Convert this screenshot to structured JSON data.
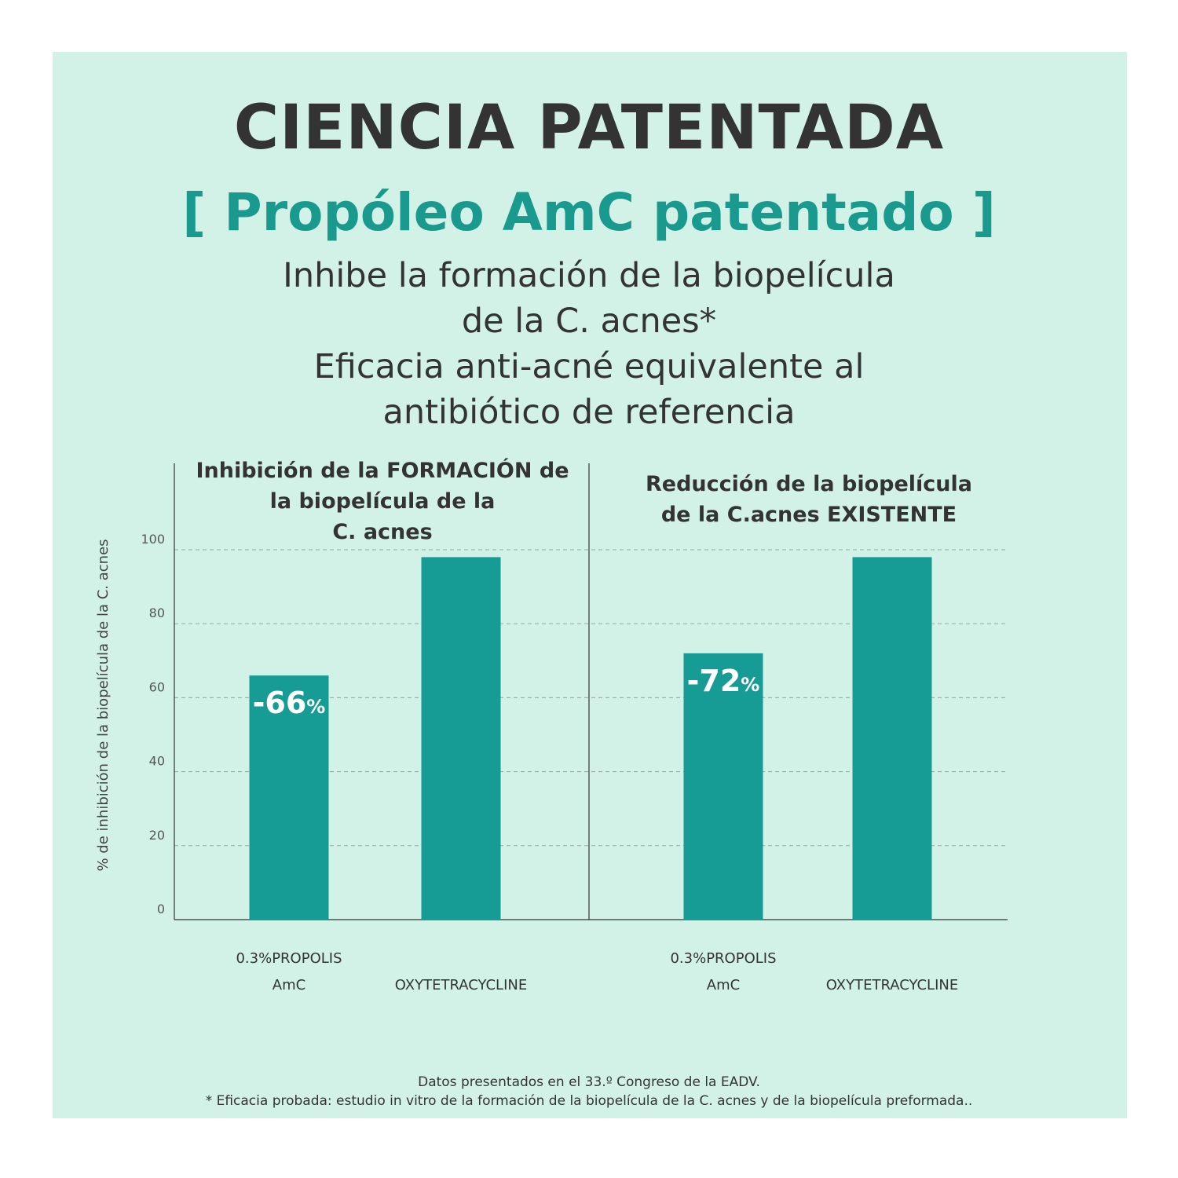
{
  "header": {
    "title": "CIENCIA PATENTADA",
    "subtitle": "[ Propóleo AmC patentado ]",
    "claims": [
      "Inhibe la formación de la biopelícula",
      "de la C. acnes*",
      "Eficacia anti-acné equivalente al",
      "antibiótico de referencia"
    ]
  },
  "colors": {
    "panel": "#d2f2e8",
    "bar": "#169c94",
    "title": "#333333",
    "subtitle": "#1a9a8e"
  },
  "chart_data": {
    "type": "bar",
    "ylabel": "% de inhibición de la biopelícula de la C. acnes",
    "ylim": [
      0,
      100
    ],
    "yticks": [
      "0",
      "20",
      "40",
      "60",
      "80",
      "100"
    ],
    "grid": true,
    "groups": [
      {
        "title_lines": [
          "Inhibición de la FORMACIÓN de",
          "la biopelícula de la",
          "C. acnes"
        ],
        "bars": [
          {
            "label_lines": [
              "0.3%PROPOLIS",
              "AmC"
            ],
            "value": 66,
            "value_label": "-66",
            "value_suffix": "%"
          },
          {
            "label_lines": [
              "OXYTETRACYCLINE"
            ],
            "value": 98,
            "value_label": "",
            "value_suffix": ""
          }
        ]
      },
      {
        "title_lines": [
          "Reducción de la biopelícula",
          "de la C.acnes EXISTENTE"
        ],
        "bars": [
          {
            "label_lines": [
              "0.3%PROPOLIS",
              "AmC"
            ],
            "value": 72,
            "value_label": "-72",
            "value_suffix": "%"
          },
          {
            "label_lines": [
              "OXYTETRACYCLINE"
            ],
            "value": 98,
            "value_label": "",
            "value_suffix": ""
          }
        ]
      }
    ]
  },
  "footnote": [
    "Datos presentados en el 33.º Congreso de la EADV.",
    "* Eficacia probada: estudio in vitro de la formación de la biopelícula de la C. acnes y de la biopelícula preformada.."
  ]
}
